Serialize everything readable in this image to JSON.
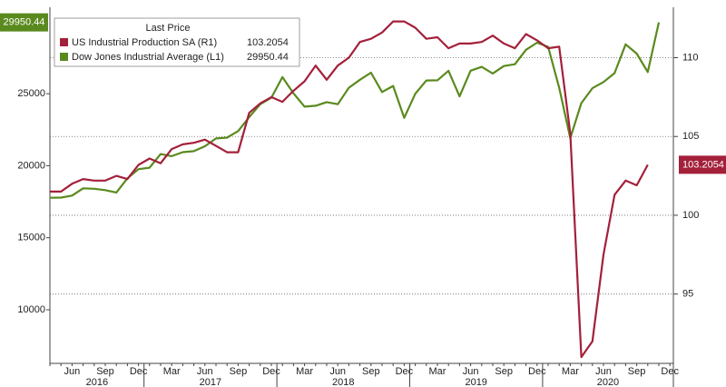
{
  "chart_data": {
    "type": "line",
    "legend_title": "Last Price",
    "categories": [
      null,
      null,
      "Jun",
      null,
      null,
      "Sep",
      null,
      null,
      "Dec",
      null,
      null,
      "Mar",
      null,
      null,
      "Jun",
      null,
      null,
      "Sep",
      null,
      null,
      "Dec",
      null,
      null,
      "Mar",
      null,
      null,
      "Jun",
      null,
      null,
      "Sep",
      null,
      null,
      "Dec",
      null,
      null,
      "Mar",
      null,
      null,
      "Jun",
      null,
      null,
      "Sep",
      null,
      null,
      "Dec",
      null,
      null,
      "Mar",
      null,
      null,
      "Jun",
      null,
      null,
      "Sep",
      null,
      null,
      "Dec"
    ],
    "years": [
      "2016",
      "2017",
      "2018",
      "2019",
      "2020"
    ],
    "ylim": [
      6280,
      31000
    ],
    "yticks": [
      10000,
      15000,
      20000,
      25000
    ],
    "y2lim": [
      90.6,
      113.2
    ],
    "y2ticks": [
      95,
      100,
      105,
      110
    ],
    "grid": true,
    "series": [
      {
        "name": "US Industrial Production SA  (R1)",
        "axis": "y2",
        "color": "#a3203a",
        "last_label": "103.2054",
        "values": [
          101.5,
          101.5,
          102.0,
          102.3,
          102.2,
          102.2,
          102.5,
          102.3,
          103.2,
          103.6,
          103.3,
          104.2,
          104.5,
          104.6,
          104.8,
          104.4,
          104.0,
          104.0,
          106.5,
          107.1,
          107.5,
          107.2,
          107.9,
          108.5,
          109.5,
          108.6,
          109.5,
          110.0,
          111.0,
          111.2,
          111.6,
          112.3,
          112.3,
          111.9,
          111.2,
          111.3,
          110.6,
          110.9,
          110.9,
          111.0,
          111.4,
          110.9,
          110.6,
          111.5,
          111.1,
          110.6,
          110.7,
          105.2,
          91.0,
          92.0,
          97.5,
          101.3,
          102.2,
          101.9,
          103.2054,
          null,
          null
        ]
      },
      {
        "name": "Dow Jones Industrial Average  (L1)",
        "axis": "y",
        "color": "#5a8a1e",
        "last_label": "29950.44",
        "values": [
          17774,
          17787,
          17930,
          18432,
          18400,
          18308,
          18142,
          19124,
          19763,
          19864,
          20812,
          20663,
          20940,
          21009,
          21350,
          21891,
          21948,
          22405,
          23377,
          24272,
          24719,
          26149,
          25029,
          24103,
          24163,
          24416,
          24271,
          25415,
          25965,
          26458,
          25116,
          25538,
          23327,
          24999,
          25916,
          25929,
          26593,
          24815,
          26600,
          26864,
          26403,
          26917,
          27046,
          28051,
          28538,
          28256,
          25409,
          21917,
          24346,
          25383,
          25813,
          26428,
          28430,
          27782,
          26502,
          29950.44,
          null
        ]
      }
    ]
  }
}
